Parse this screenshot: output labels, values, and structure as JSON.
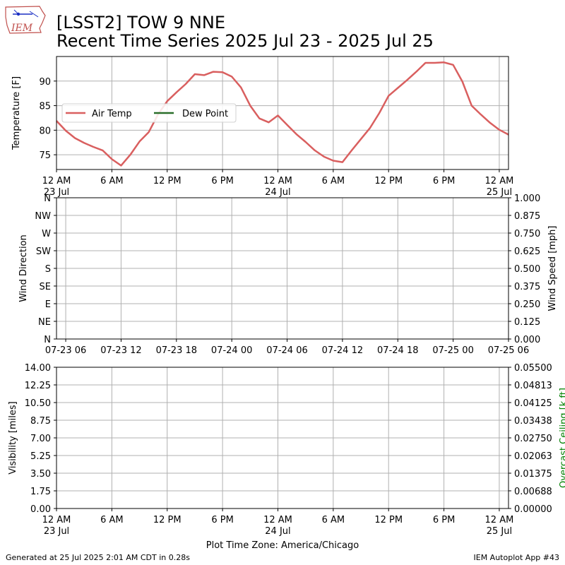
{
  "header": {
    "logo_text": "IEM",
    "title_line1": "[LSST2] TOW 9 NNE",
    "title_line2": "Recent Time Series 2025 Jul 23 - 2025 Jul 25"
  },
  "footer": {
    "generated": "Generated at 25 Jul 2025 2:01 AM CDT in 0.28s",
    "app": "IEM Autoplot App #43"
  },
  "colors": {
    "air_temp": "#d95f5f",
    "dew_point": "#2a6e2a",
    "grid": "#b0b0b0",
    "ceiling_label": "#008000"
  },
  "chart_data": [
    {
      "type": "line",
      "panel": "temperature",
      "ylabel": "Temperature [F]",
      "yticks": [
        75,
        80,
        85,
        90
      ],
      "ylim": [
        72,
        95
      ],
      "x_hours_since": "2025-07-23 00:00",
      "xlim": [
        0,
        49
      ],
      "xticks": [
        {
          "hour": 0,
          "label": "12 AM",
          "sub": "23 Jul"
        },
        {
          "hour": 6,
          "label": "6 AM",
          "sub": ""
        },
        {
          "hour": 12,
          "label": "12 PM",
          "sub": ""
        },
        {
          "hour": 18,
          "label": "6 PM",
          "sub": ""
        },
        {
          "hour": 24,
          "label": "12 AM",
          "sub": "24 Jul"
        },
        {
          "hour": 30,
          "label": "6 AM",
          "sub": ""
        },
        {
          "hour": 36,
          "label": "12 PM",
          "sub": ""
        },
        {
          "hour": 42,
          "label": "6 PM",
          "sub": ""
        },
        {
          "hour": 48,
          "label": "12 AM",
          "sub": "25 Jul"
        }
      ],
      "legend": {
        "location": "center-left",
        "entries": [
          "Air Temp",
          "Dew Point"
        ]
      },
      "series": [
        {
          "name": "Air Temp",
          "x": [
            0,
            1,
            2,
            3,
            4,
            5,
            6,
            7,
            8,
            9,
            10,
            11,
            12,
            13,
            14,
            15,
            16,
            17,
            18,
            19,
            20,
            21,
            22,
            23,
            24,
            25,
            26,
            27,
            28,
            29,
            30,
            31,
            32,
            33,
            34,
            35,
            36,
            37,
            38,
            39,
            40,
            41,
            42,
            43,
            44,
            45,
            46,
            47,
            48,
            49
          ],
          "y": [
            81.9,
            79.9,
            78.4,
            77.4,
            76.6,
            75.9,
            74.1,
            72.8,
            75.0,
            77.7,
            79.6,
            83.2,
            85.9,
            87.7,
            89.4,
            91.4,
            91.2,
            91.9,
            91.8,
            90.9,
            88.7,
            85.0,
            82.4,
            81.6,
            83.0,
            81.1,
            79.2,
            77.6,
            75.9,
            74.6,
            73.8,
            73.5,
            75.9,
            78.2,
            80.5,
            83.5,
            87.0,
            88.6,
            90.2,
            91.9,
            93.7,
            93.7,
            93.8,
            93.3,
            89.9,
            85.0,
            83.2,
            81.5,
            80.1,
            79.1
          ]
        },
        {
          "name": "Dew Point",
          "x": [],
          "y": []
        }
      ]
    },
    {
      "type": "line",
      "panel": "wind",
      "ylabel": "Wind Direction",
      "ylabel_right": "Wind Speed [mph]",
      "ytick_labels": [
        "N",
        "NE",
        "E",
        "SE",
        "S",
        "SW",
        "W",
        "NW",
        "N"
      ],
      "ytick_values": [
        0,
        45,
        90,
        135,
        180,
        225,
        270,
        315,
        360
      ],
      "ylim": [
        0,
        360
      ],
      "right_ticks": [
        "0.000",
        "0.125",
        "0.250",
        "0.375",
        "0.500",
        "0.625",
        "0.750",
        "0.875",
        "1.000"
      ],
      "right_ylim": [
        0,
        1
      ],
      "xlim": [
        0,
        49
      ],
      "xticks": [
        {
          "hour": 1,
          "label": "07-23 06"
        },
        {
          "hour": 7,
          "label": "07-23 12"
        },
        {
          "hour": 13,
          "label": "07-23 18"
        },
        {
          "hour": 19,
          "label": "07-24 00"
        },
        {
          "hour": 25,
          "label": "07-24 06"
        },
        {
          "hour": 31,
          "label": "07-24 12"
        },
        {
          "hour": 37,
          "label": "07-24 18"
        },
        {
          "hour": 43,
          "label": "07-25 00"
        },
        {
          "hour": 49,
          "label": "07-25 06"
        }
      ],
      "series": []
    },
    {
      "type": "line",
      "panel": "visibility",
      "ylabel": "Visibility [miles]",
      "ylabel_right": "Overcast Ceiling [k ft]",
      "yticks": [
        "0.00",
        "1.75",
        "3.50",
        "5.25",
        "7.00",
        "8.75",
        "10.50",
        "12.25",
        "14.00"
      ],
      "ylim": [
        0,
        14
      ],
      "right_ticks": [
        "0.00000",
        "0.00688",
        "0.01375",
        "0.02063",
        "0.02750",
        "0.03438",
        "0.04125",
        "0.04813",
        "0.05500"
      ],
      "right_ylim": [
        0,
        0.055
      ],
      "xlabel": "Plot Time Zone: America/Chicago",
      "xlim": [
        0,
        49
      ],
      "xticks": [
        {
          "hour": 0,
          "label": "12 AM",
          "sub": "23 Jul"
        },
        {
          "hour": 6,
          "label": "6 AM",
          "sub": ""
        },
        {
          "hour": 12,
          "label": "12 PM",
          "sub": ""
        },
        {
          "hour": 18,
          "label": "6 PM",
          "sub": ""
        },
        {
          "hour": 24,
          "label": "12 AM",
          "sub": "24 Jul"
        },
        {
          "hour": 30,
          "label": "6 AM",
          "sub": ""
        },
        {
          "hour": 36,
          "label": "12 PM",
          "sub": ""
        },
        {
          "hour": 42,
          "label": "6 PM",
          "sub": ""
        },
        {
          "hour": 48,
          "label": "12 AM",
          "sub": "25 Jul"
        }
      ],
      "series": []
    }
  ]
}
